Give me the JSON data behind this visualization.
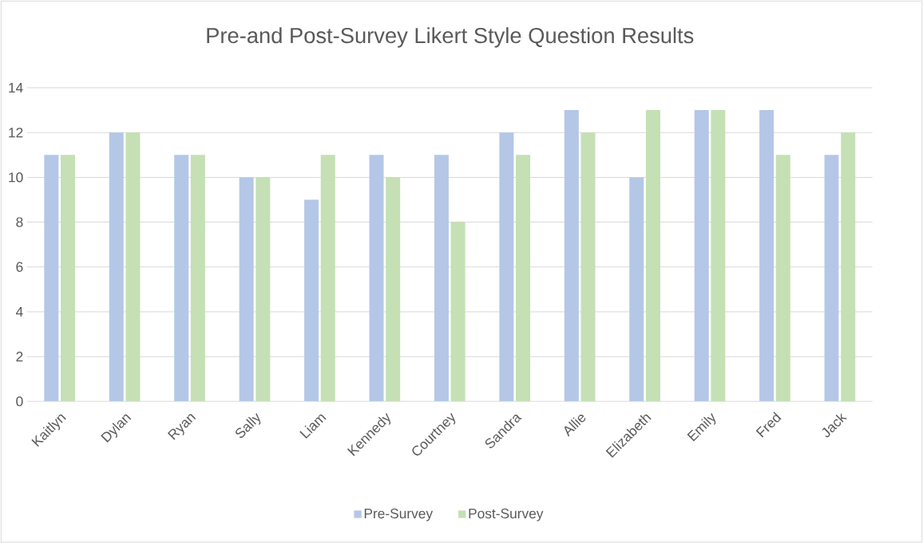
{
  "chart_data": {
    "type": "bar",
    "title": "Pre-and Post-Survey Likert Style Question Results",
    "categories": [
      "Kaitlyn",
      "Dylan",
      "Ryan",
      "Sally",
      "Liam",
      "Kennedy",
      "Courtney",
      "Sandra",
      "Allie",
      "Elizabeth",
      "Emily",
      "Fred",
      "Jack"
    ],
    "series": [
      {
        "name": "Pre-Survey",
        "color": "#b4c7e7",
        "values": [
          11,
          12,
          11,
          10,
          9,
          11,
          11,
          12,
          13,
          10,
          13,
          13,
          11
        ]
      },
      {
        "name": "Post-Survey",
        "color": "#c5e0b4",
        "values": [
          11,
          12,
          11,
          10,
          11,
          10,
          8,
          11,
          12,
          13,
          13,
          11,
          12
        ]
      }
    ],
    "ylim": [
      0,
      14
    ],
    "yticks": [
      0,
      2,
      4,
      6,
      8,
      10,
      12,
      14
    ],
    "grid": "y",
    "legend": "bottom"
  }
}
